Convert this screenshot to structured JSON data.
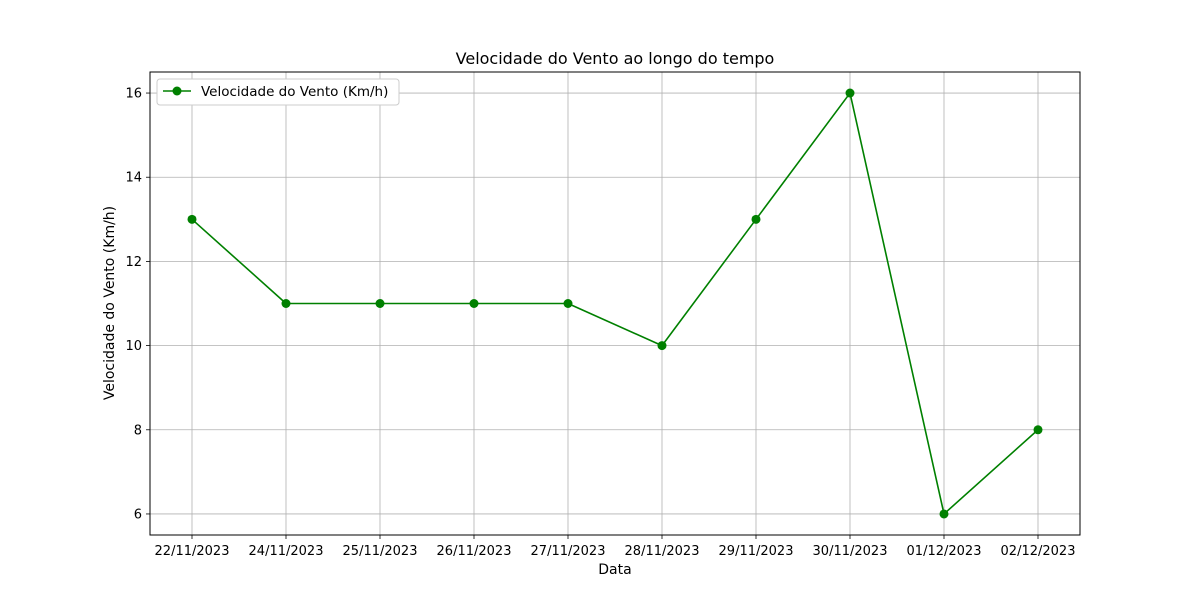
{
  "chart_data": {
    "type": "line",
    "title": "Velocidade do Vento ao longo do tempo",
    "xlabel": "Data",
    "ylabel": "Velocidade do Vento (Km/h)",
    "categories": [
      "22/11/2023",
      "24/11/2023",
      "25/11/2023",
      "26/11/2023",
      "27/11/2023",
      "28/11/2023",
      "29/11/2023",
      "30/11/2023",
      "01/12/2023",
      "02/12/2023"
    ],
    "series": [
      {
        "name": "Velocidade do Vento (Km/h)",
        "values": [
          13,
          11,
          11,
          11,
          11,
          10,
          13,
          16,
          6,
          8
        ],
        "color": "#008000"
      }
    ],
    "yticks": [
      6,
      8,
      10,
      12,
      14,
      16
    ],
    "ylim": [
      5.5,
      16.5
    ],
    "grid": true,
    "legend": "upper-left",
    "marker": "circle"
  }
}
